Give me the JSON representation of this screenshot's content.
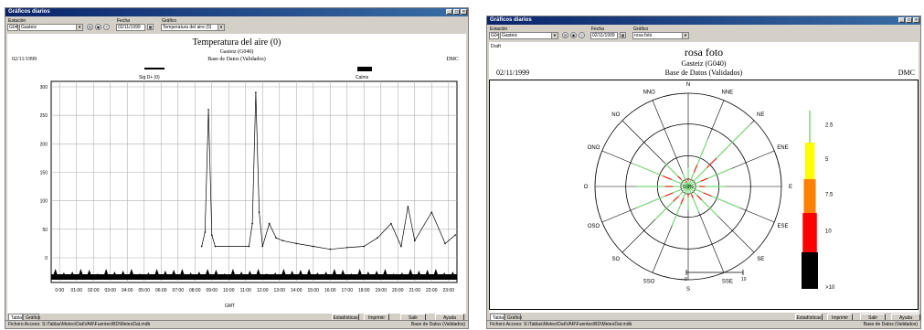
{
  "left": {
    "title": "Gráficos diarios",
    "fields": {
      "station_label": "Estación",
      "station_code": "G040",
      "station_name": "Gasteiz",
      "date_label": "Fecha",
      "date": "02/11/1999",
      "chart_label": "Gráfico",
      "chart_value": "Temperatura del aire (0)"
    },
    "header": {
      "title": "Temperatura del aire (0)",
      "station": "Gasteiz (G040)",
      "db": "Base de Datos (Validados)",
      "date": "02/11/1999",
      "org": "DMC"
    },
    "legend": {
      "sig": "Sig D+ (0)",
      "calms": "Calms"
    },
    "tabs": [
      "Tabla",
      "Gráfico"
    ],
    "buttons": [
      "Estadísticas",
      "Imprimir",
      "Salir",
      "Ayuda"
    ],
    "status": {
      "file": "Fichero Acceso: S:\\Tablas\\Meteo\\Dat\\VAR\\Fuentes\\BD\\MeteoDat.mdb",
      "db": "Base de Datos (Validados)"
    },
    "gmt": "GMT",
    "colors": {
      "bars": "#000000",
      "grid": "#b0b0b0"
    }
  },
  "right": {
    "title": "Gráficos diarios",
    "fields": {
      "station_label": "Estación",
      "station_code": "G040",
      "station_name": "Gasteiz",
      "date_label": "Fecha",
      "date": "02/11/1999",
      "chart_label": "Gráfico",
      "chart_value": "rosa foto"
    },
    "small_label": "Draft",
    "header": {
      "title": "rosa foto",
      "station": "Gasteiz (G040)",
      "db": "Base de Datos (Validados)",
      "date": "02/11/1999",
      "org": "DMC"
    },
    "calm_pct": "0.0%",
    "scale": {
      "zero": "0",
      "ten": "10"
    },
    "tabs": [
      "Tabla",
      "Gráfico"
    ],
    "buttons": [
      "Estadísticas",
      "Imprimir",
      "Salir",
      "Ayuda"
    ],
    "status": {
      "file": "Fichero Acceso: S:\\Tablas\\Meteo\\Dat\\VAR\\Fuentes\\BD\\MeteoDat.mdb",
      "db": "Base de Datos (Validados)"
    },
    "directions": [
      "N",
      "NNE",
      "NE",
      "ENE",
      "E",
      "ESE",
      "SE",
      "SSE",
      "S",
      "SSO",
      "SO",
      "OSO",
      "O",
      "ONO",
      "NO",
      "NNO"
    ],
    "legend": [
      {
        "label": "2.5",
        "color": "#7ad67a"
      },
      {
        "label": "5",
        "color": "#ffff00"
      },
      {
        "label": "7.5",
        "color": "#ff8000"
      },
      {
        "label": "10",
        "color": "#ff0000"
      },
      {
        "label": ">10",
        "color": "#000000"
      }
    ]
  },
  "chart_data": [
    {
      "type": "line",
      "title": "Temperatura del aire (0)",
      "xlabel": "GMT",
      "x_ticks": [
        "0:00",
        "01:00",
        "02:00",
        "03:00",
        "04:00",
        "05:00",
        "06:00",
        "07:00",
        "08:00",
        "09:00",
        "10:00",
        "11:00",
        "12:00",
        "13:00",
        "14:00",
        "15:00",
        "16:00",
        "17:00",
        "18:00",
        "19:00",
        "20:00",
        "21:00",
        "22:00",
        "23:00"
      ],
      "y_ticks": [
        "300",
        "250",
        "200",
        "150",
        "100",
        "50",
        "0"
      ],
      "ylim": [
        0,
        300
      ],
      "series": [
        {
          "x": [
            8.4,
            8.6,
            8.8,
            9.0,
            9.2,
            11.2,
            11.4,
            11.6,
            11.8,
            12.0,
            12.4,
            12.8,
            13.2,
            14.0,
            15.0,
            16.0,
            17.0,
            18.0,
            18.8,
            19.6,
            20.2,
            20.6,
            21.0,
            22.0,
            22.8,
            23.4
          ],
          "y": [
            20,
            45,
            260,
            40,
            20,
            20,
            60,
            290,
            80,
            20,
            60,
            35,
            30,
            25,
            20,
            15,
            18,
            20,
            35,
            60,
            20,
            90,
            30,
            80,
            25,
            40
          ]
        }
      ]
    },
    {
      "type": "radar",
      "title": "rosa foto",
      "categories": [
        "N",
        "NNE",
        "NE",
        "ENE",
        "E",
        "ESE",
        "SE",
        "SSE",
        "S",
        "SSO",
        "SO",
        "OSO",
        "O",
        "ONO",
        "NO",
        "NNO"
      ],
      "legend": [
        "2.5",
        "5",
        "7.5",
        "10",
        ">10"
      ]
    }
  ]
}
